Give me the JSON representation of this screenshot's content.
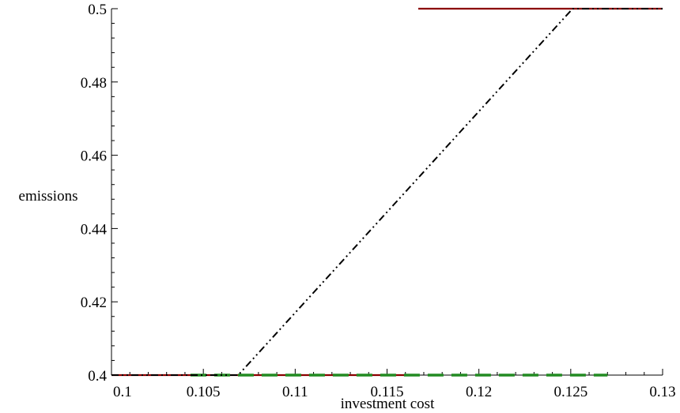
{
  "chart_data": {
    "type": "line",
    "title": "",
    "xlabel": "investment cost",
    "ylabel": "emissions",
    "xlim": [
      0.1,
      0.13
    ],
    "ylim": [
      0.4,
      0.5
    ],
    "x_ticks": [
      0.1,
      0.105,
      0.11,
      0.115,
      0.12,
      0.125,
      0.13
    ],
    "x_tick_labels": [
      "0.1",
      "0.105",
      "0.11",
      "0.115",
      "0.12",
      "0.125",
      "0.13"
    ],
    "y_ticks": [
      0.4,
      0.42,
      0.44,
      0.46,
      0.48,
      0.5
    ],
    "y_tick_labels": [
      "0.4",
      "0.42",
      "0.44",
      "0.46",
      "0.48",
      "0.5"
    ],
    "grid": false,
    "legend": "none",
    "series": [
      {
        "color": "#8b0000",
        "style": "solid",
        "segments": [
          [
            [
              0.1,
              0.4
            ],
            [
              0.1167,
              0.4
            ]
          ],
          [
            [
              0.1167,
              0.5
            ],
            [
              0.13,
              0.5
            ]
          ]
        ]
      },
      {
        "color": "#228b22",
        "style": "dashed",
        "segments": [
          [
            [
              0.1043,
              0.4
            ],
            [
              0.127,
              0.4
            ]
          ]
        ]
      },
      {
        "color": "#000000",
        "style": "dash-dot-dot",
        "segments": [
          [
            [
              0.1,
              0.4
            ],
            [
              0.1069,
              0.4
            ],
            [
              0.1251,
              0.5
            ],
            [
              0.13,
              0.5
            ]
          ]
        ]
      }
    ]
  }
}
